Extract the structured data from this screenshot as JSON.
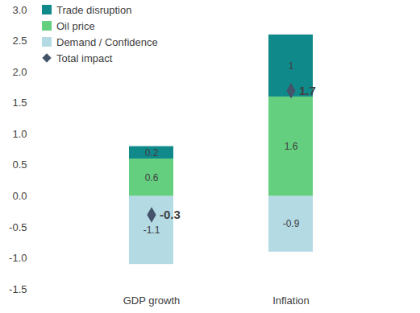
{
  "chart_data": {
    "type": "bar",
    "stacked": true,
    "data_labels": true,
    "grid": false,
    "legend": "top-left",
    "categories": [
      "GDP growth",
      "Inflation"
    ],
    "series": [
      {
        "name": "Trade disruption",
        "color": "#10898b",
        "values": [
          0.2,
          1
        ]
      },
      {
        "name": "Oil price",
        "color": "#63cf7f",
        "values": [
          0.6,
          1.6
        ]
      },
      {
        "name": "Demand / Confidence",
        "color": "#b4dae4",
        "values": [
          -1.1,
          -0.9
        ]
      },
      {
        "name": "Total impact",
        "type": "scatter",
        "marker": "diamond",
        "color": "#44546a",
        "values": [
          -0.3,
          1.7
        ]
      }
    ],
    "ylim": [
      -1.5,
      3
    ],
    "yticks": [
      -1.5,
      {
        "value": -1,
        "label": "-1.0"
      },
      -0.5,
      {
        "value": 0,
        "label": "0.0"
      },
      0.5,
      {
        "value": 1,
        "label": "1.0"
      },
      1.5,
      {
        "value": 2,
        "label": "2.0"
      },
      2.5,
      {
        "value": 3,
        "label": "3.0"
      }
    ]
  }
}
